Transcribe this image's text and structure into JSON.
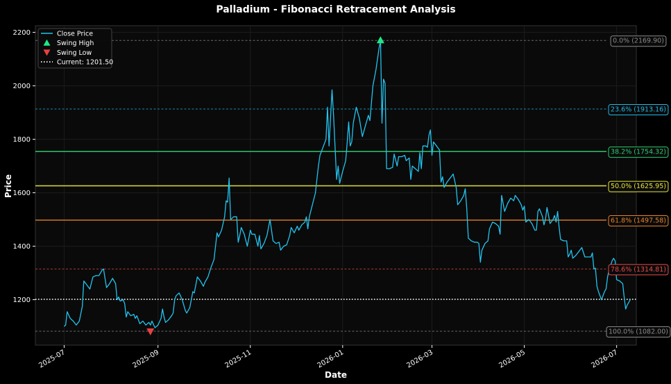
{
  "chart_data": {
    "type": "line",
    "title": "Palladium - Fibonacci Retracement Analysis",
    "xlabel": "Date",
    "ylabel": "Price",
    "xlim": [
      "2025-06-12",
      "2026-07-14"
    ],
    "ylim": [
      1030,
      2225
    ],
    "grid": true,
    "legend_position": "top-left",
    "colors": {
      "background": "#000000",
      "plot_background": "#0a0a0a",
      "price": "#22c4f0",
      "swing_high": "#1de986",
      "swing_low": "#e84040",
      "current": "#ffffff",
      "fib_0": "#8a8a8a",
      "fib_236": "#22b8e6",
      "fib_382": "#2ecc71",
      "fib_500": "#e6e63c",
      "fib_618": "#e8822a",
      "fib_786": "#e84a4a",
      "fib_100": "#8a8a8a"
    },
    "x_ticks": [
      "2025-07",
      "2025-09",
      "2025-11",
      "2026-01",
      "2026-03",
      "2026-05",
      "2026-07"
    ],
    "x_tick_dates": [
      "2025-07-01",
      "2025-09-01",
      "2025-11-01",
      "2026-01-01",
      "2026-03-01",
      "2026-05-01",
      "2026-07-01"
    ],
    "y_ticks": [
      1200,
      1400,
      1600,
      1800,
      2000,
      2200
    ],
    "legend": [
      {
        "key": "price",
        "label": "Close Price"
      },
      {
        "key": "swing_high",
        "label": "Swing High"
      },
      {
        "key": "swing_low",
        "label": "Swing Low"
      },
      {
        "key": "current",
        "label": "Current: 1201.50"
      }
    ],
    "current_price": 1201.5,
    "swing_high": {
      "date": "2026-01-26",
      "value": 2169.9
    },
    "swing_low": {
      "date": "2025-08-27",
      "value": 1082.0
    },
    "fib_levels": [
      {
        "ratio": "0.0%",
        "value": 2169.9,
        "label": "0.0% (2169.90)",
        "color_key": "fib_0",
        "style": "dashed"
      },
      {
        "ratio": "23.6%",
        "value": 1913.16,
        "label": "23.6% (1913.16)",
        "color_key": "fib_236",
        "style": "dashed"
      },
      {
        "ratio": "38.2%",
        "value": 1754.32,
        "label": "38.2% (1754.32)",
        "color_key": "fib_382",
        "style": "solid"
      },
      {
        "ratio": "50.0%",
        "value": 1625.95,
        "label": "50.0% (1625.95)",
        "color_key": "fib_500",
        "style": "solid"
      },
      {
        "ratio": "61.8%",
        "value": 1497.58,
        "label": "61.8% (1497.58)",
        "color_key": "fib_618",
        "style": "solid"
      },
      {
        "ratio": "78.6%",
        "value": 1314.81,
        "label": "78.6% (1314.81)",
        "color_key": "fib_786",
        "style": "dashed"
      },
      {
        "ratio": "100.0%",
        "value": 1082.0,
        "label": "100.0% (1082.00)",
        "color_key": "fib_100",
        "style": "dashed"
      }
    ],
    "series": [
      {
        "name": "Close Price",
        "points": [
          [
            "2025-07-01",
            1100
          ],
          [
            "2025-07-02",
            1105
          ],
          [
            "2025-07-03",
            1155
          ],
          [
            "2025-07-05",
            1130
          ],
          [
            "2025-07-07",
            1120
          ],
          [
            "2025-07-09",
            1105
          ],
          [
            "2025-07-11",
            1120
          ],
          [
            "2025-07-13",
            1175
          ],
          [
            "2025-07-14",
            1270
          ],
          [
            "2025-07-16",
            1255
          ],
          [
            "2025-07-18",
            1240
          ],
          [
            "2025-07-20",
            1285
          ],
          [
            "2025-07-22",
            1290
          ],
          [
            "2025-07-24",
            1290
          ],
          [
            "2025-07-26",
            1310
          ],
          [
            "2025-07-27",
            1315
          ],
          [
            "2025-07-29",
            1245
          ],
          [
            "2025-07-31",
            1260
          ],
          [
            "2025-08-02",
            1280
          ],
          [
            "2025-08-04",
            1260
          ],
          [
            "2025-08-05",
            1200
          ],
          [
            "2025-08-06",
            1210
          ],
          [
            "2025-08-07",
            1195
          ],
          [
            "2025-08-09",
            1200
          ],
          [
            "2025-08-10",
            1185
          ],
          [
            "2025-08-11",
            1135
          ],
          [
            "2025-08-12",
            1155
          ],
          [
            "2025-08-14",
            1140
          ],
          [
            "2025-08-16",
            1145
          ],
          [
            "2025-08-17",
            1130
          ],
          [
            "2025-08-18",
            1140
          ],
          [
            "2025-08-20",
            1110
          ],
          [
            "2025-08-22",
            1120
          ],
          [
            "2025-08-24",
            1105
          ],
          [
            "2025-08-26",
            1115
          ],
          [
            "2025-08-27",
            1105
          ],
          [
            "2025-08-28",
            1120
          ],
          [
            "2025-08-30",
            1095
          ],
          [
            "2025-09-01",
            1105
          ],
          [
            "2025-09-03",
            1130
          ],
          [
            "2025-09-04",
            1165
          ],
          [
            "2025-09-05",
            1135
          ],
          [
            "2025-09-06",
            1115
          ],
          [
            "2025-09-08",
            1125
          ],
          [
            "2025-09-10",
            1140
          ],
          [
            "2025-09-11",
            1150
          ],
          [
            "2025-09-12",
            1200
          ],
          [
            "2025-09-13",
            1215
          ],
          [
            "2025-09-15",
            1225
          ],
          [
            "2025-09-17",
            1200
          ],
          [
            "2025-09-19",
            1160
          ],
          [
            "2025-09-20",
            1150
          ],
          [
            "2025-09-22",
            1170
          ],
          [
            "2025-09-24",
            1230
          ],
          [
            "2025-09-25",
            1225
          ],
          [
            "2025-09-27",
            1285
          ],
          [
            "2025-09-29",
            1270
          ],
          [
            "2025-10-01",
            1250
          ],
          [
            "2025-10-02",
            1265
          ],
          [
            "2025-10-04",
            1285
          ],
          [
            "2025-10-06",
            1320
          ],
          [
            "2025-10-08",
            1350
          ],
          [
            "2025-10-10",
            1450
          ],
          [
            "2025-10-11",
            1435
          ],
          [
            "2025-10-13",
            1460
          ],
          [
            "2025-10-15",
            1510
          ],
          [
            "2025-10-16",
            1570
          ],
          [
            "2025-10-17",
            1565
          ],
          [
            "2025-10-18",
            1655
          ],
          [
            "2025-10-19",
            1500
          ],
          [
            "2025-10-21",
            1510
          ],
          [
            "2025-10-23",
            1510
          ],
          [
            "2025-10-24",
            1415
          ],
          [
            "2025-10-25",
            1440
          ],
          [
            "2025-10-26",
            1470
          ],
          [
            "2025-10-28",
            1445
          ],
          [
            "2025-10-30",
            1400
          ],
          [
            "2025-11-01",
            1460
          ],
          [
            "2025-11-02",
            1445
          ],
          [
            "2025-11-04",
            1445
          ],
          [
            "2025-11-06",
            1400
          ],
          [
            "2025-11-07",
            1440
          ],
          [
            "2025-11-08",
            1390
          ],
          [
            "2025-11-10",
            1410
          ],
          [
            "2025-11-12",
            1440
          ],
          [
            "2025-11-14",
            1500
          ],
          [
            "2025-11-16",
            1420
          ],
          [
            "2025-11-18",
            1410
          ],
          [
            "2025-11-20",
            1415
          ],
          [
            "2025-11-21",
            1385
          ],
          [
            "2025-11-23",
            1400
          ],
          [
            "2025-11-25",
            1405
          ],
          [
            "2025-11-27",
            1440
          ],
          [
            "2025-11-28",
            1470
          ],
          [
            "2025-11-30",
            1450
          ],
          [
            "2025-12-02",
            1475
          ],
          [
            "2025-12-03",
            1460
          ],
          [
            "2025-12-05",
            1480
          ],
          [
            "2025-12-07",
            1490
          ],
          [
            "2025-12-08",
            1510
          ],
          [
            "2025-12-09",
            1465
          ],
          [
            "2025-12-10",
            1510
          ],
          [
            "2025-12-12",
            1555
          ],
          [
            "2025-12-14",
            1600
          ],
          [
            "2025-12-15",
            1650
          ],
          [
            "2025-12-16",
            1700
          ],
          [
            "2025-12-17",
            1740
          ],
          [
            "2025-12-19",
            1770
          ],
          [
            "2025-12-21",
            1800
          ],
          [
            "2025-12-22",
            1920
          ],
          [
            "2025-12-23",
            1775
          ],
          [
            "2025-12-25",
            1985
          ],
          [
            "2025-12-26",
            1890
          ],
          [
            "2025-12-28",
            1650
          ],
          [
            "2025-12-29",
            1700
          ],
          [
            "2025-12-30",
            1635
          ],
          [
            "2026-01-01",
            1680
          ],
          [
            "2026-01-03",
            1720
          ],
          [
            "2026-01-04",
            1790
          ],
          [
            "2026-01-05",
            1865
          ],
          [
            "2026-01-06",
            1775
          ],
          [
            "2026-01-07",
            1790
          ],
          [
            "2026-01-08",
            1860
          ],
          [
            "2026-01-10",
            1920
          ],
          [
            "2026-01-12",
            1880
          ],
          [
            "2026-01-14",
            1810
          ],
          [
            "2026-01-16",
            1850
          ],
          [
            "2026-01-18",
            1890
          ],
          [
            "2026-01-19",
            1870
          ],
          [
            "2026-01-21",
            2000
          ],
          [
            "2026-01-23",
            2060
          ],
          [
            "2026-01-25",
            2140
          ],
          [
            "2026-01-26",
            2170
          ],
          [
            "2026-01-27",
            1860
          ],
          [
            "2026-01-28",
            2025
          ],
          [
            "2026-01-29",
            2010
          ],
          [
            "2026-01-30",
            1690
          ],
          [
            "2026-02-01",
            1690
          ],
          [
            "2026-02-03",
            1695
          ],
          [
            "2026-02-04",
            1745
          ],
          [
            "2026-02-06",
            1700
          ],
          [
            "2026-02-07",
            1735
          ],
          [
            "2026-02-09",
            1735
          ],
          [
            "2026-02-11",
            1740
          ],
          [
            "2026-02-12",
            1720
          ],
          [
            "2026-02-14",
            1730
          ],
          [
            "2026-02-15",
            1650
          ],
          [
            "2026-02-16",
            1700
          ],
          [
            "2026-02-18",
            1690
          ],
          [
            "2026-02-20",
            1680
          ],
          [
            "2026-02-21",
            1750
          ],
          [
            "2026-02-22",
            1690
          ],
          [
            "2026-02-23",
            1775
          ],
          [
            "2026-02-25",
            1775
          ],
          [
            "2026-02-26",
            1770
          ],
          [
            "2026-02-27",
            1815
          ],
          [
            "2026-02-28",
            1835
          ],
          [
            "2026-03-01",
            1740
          ],
          [
            "2026-03-02",
            1790
          ],
          [
            "2026-03-04",
            1775
          ],
          [
            "2026-03-06",
            1760
          ],
          [
            "2026-03-07",
            1640
          ],
          [
            "2026-03-08",
            1660
          ],
          [
            "2026-03-09",
            1620
          ],
          [
            "2026-03-11",
            1640
          ],
          [
            "2026-03-13",
            1655
          ],
          [
            "2026-03-15",
            1670
          ],
          [
            "2026-03-17",
            1620
          ],
          [
            "2026-03-18",
            1555
          ],
          [
            "2026-03-20",
            1570
          ],
          [
            "2026-03-22",
            1590
          ],
          [
            "2026-03-23",
            1615
          ],
          [
            "2026-03-24",
            1540
          ],
          [
            "2026-03-25",
            1430
          ],
          [
            "2026-03-27",
            1420
          ],
          [
            "2026-03-29",
            1415
          ],
          [
            "2026-03-31",
            1415
          ],
          [
            "2026-04-01",
            1410
          ],
          [
            "2026-04-02",
            1340
          ],
          [
            "2026-04-03",
            1385
          ],
          [
            "2026-04-05",
            1410
          ],
          [
            "2026-04-07",
            1420
          ],
          [
            "2026-04-08",
            1465
          ],
          [
            "2026-04-10",
            1490
          ],
          [
            "2026-04-12",
            1485
          ],
          [
            "2026-04-14",
            1475
          ],
          [
            "2026-04-15",
            1445
          ],
          [
            "2026-04-16",
            1590
          ],
          [
            "2026-04-18",
            1530
          ],
          [
            "2026-04-20",
            1560
          ],
          [
            "2026-04-22",
            1580
          ],
          [
            "2026-04-24",
            1570
          ],
          [
            "2026-04-25",
            1590
          ],
          [
            "2026-04-27",
            1575
          ],
          [
            "2026-04-29",
            1555
          ],
          [
            "2026-04-30",
            1535
          ],
          [
            "2026-05-01",
            1550
          ],
          [
            "2026-05-02",
            1490
          ],
          [
            "2026-05-04",
            1500
          ],
          [
            "2026-05-06",
            1485
          ],
          [
            "2026-05-08",
            1460
          ],
          [
            "2026-05-09",
            1460
          ],
          [
            "2026-05-10",
            1530
          ],
          [
            "2026-05-11",
            1540
          ],
          [
            "2026-05-13",
            1510
          ],
          [
            "2026-05-14",
            1480
          ],
          [
            "2026-05-15",
            1500
          ],
          [
            "2026-05-16",
            1545
          ],
          [
            "2026-05-18",
            1485
          ],
          [
            "2026-05-20",
            1500
          ],
          [
            "2026-05-21",
            1515
          ],
          [
            "2026-05-22",
            1490
          ],
          [
            "2026-05-23",
            1530
          ],
          [
            "2026-05-24",
            1470
          ],
          [
            "2026-05-25",
            1425
          ],
          [
            "2026-05-27",
            1420
          ],
          [
            "2026-05-29",
            1420
          ],
          [
            "2026-05-30",
            1360
          ],
          [
            "2026-05-31",
            1370
          ],
          [
            "2026-06-01",
            1385
          ],
          [
            "2026-06-02",
            1355
          ],
          [
            "2026-06-04",
            1365
          ],
          [
            "2026-06-06",
            1380
          ],
          [
            "2026-06-08",
            1395
          ],
          [
            "2026-06-10",
            1360
          ],
          [
            "2026-06-12",
            1360
          ],
          [
            "2026-06-14",
            1360
          ],
          [
            "2026-06-15",
            1375
          ],
          [
            "2026-06-16",
            1315
          ],
          [
            "2026-06-17",
            1318
          ],
          [
            "2026-06-18",
            1250
          ],
          [
            "2026-06-19",
            1230
          ],
          [
            "2026-06-21",
            1200
          ],
          [
            "2026-06-23",
            1230
          ],
          [
            "2026-06-24",
            1240
          ],
          [
            "2026-06-25",
            1285
          ],
          [
            "2026-06-26",
            1310
          ],
          [
            "2026-06-28",
            1345
          ],
          [
            "2026-06-29",
            1355
          ],
          [
            "2026-06-30",
            1345
          ],
          [
            "2026-07-01",
            1275
          ],
          [
            "2026-07-03",
            1270
          ],
          [
            "2026-07-05",
            1260
          ],
          [
            "2026-07-06",
            1210
          ],
          [
            "2026-07-07",
            1165
          ],
          [
            "2026-07-08",
            1180
          ],
          [
            "2026-07-10",
            1200
          ]
        ]
      }
    ]
  }
}
